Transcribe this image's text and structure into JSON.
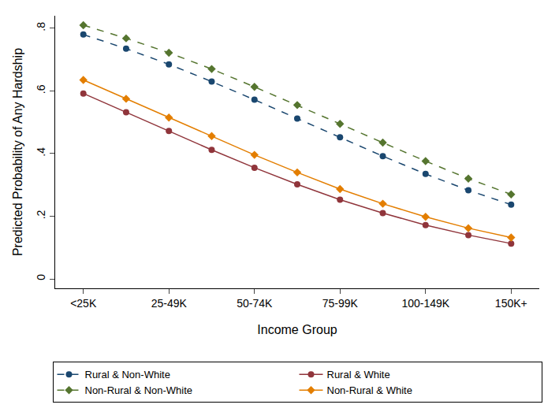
{
  "chart_data": {
    "type": "line",
    "x_label": "Income Group",
    "y_label": "Predicted Probability of Any Hardship",
    "categories": [
      "<25K",
      null,
      "25-49K",
      null,
      "50-74K",
      null,
      "75-99K",
      null,
      "100-149K",
      null,
      "150K+"
    ],
    "series": [
      {
        "name": "Rural & Non-White",
        "color": "#1a476f",
        "marker": "circle",
        "line_style": "dash",
        "values": [
          0.78,
          0.735,
          0.685,
          0.63,
          0.572,
          0.512,
          0.452,
          0.392,
          0.335,
          0.283,
          0.237
        ]
      },
      {
        "name": "Rural & White",
        "color": "#90353b",
        "marker": "circle",
        "line_style": "solid",
        "values": [
          0.592,
          0.532,
          0.472,
          0.412,
          0.355,
          0.302,
          0.253,
          0.21,
          0.172,
          0.14,
          0.113
        ]
      },
      {
        "name": "Non-Rural & Non-White",
        "color": "#55752f",
        "marker": "diamond",
        "line_style": "dash",
        "values": [
          0.81,
          0.768,
          0.722,
          0.67,
          0.613,
          0.555,
          0.495,
          0.435,
          0.376,
          0.32,
          0.27
        ]
      },
      {
        "name": "Non-Rural & White",
        "color": "#e37e00",
        "marker": "diamond",
        "line_style": "solid",
        "values": [
          0.635,
          0.575,
          0.515,
          0.456,
          0.396,
          0.34,
          0.287,
          0.24,
          0.198,
          0.162,
          0.132
        ]
      }
    ],
    "ylim": [
      -0.03,
      0.84
    ],
    "yticks": [
      0,
      {
        "value": 0.2,
        "label": ".2"
      },
      {
        "value": 0.4,
        "label": ".4"
      },
      {
        "value": 0.6,
        "label": ".6"
      },
      {
        "value": 0.8,
        "label": ".8"
      }
    ],
    "grid": false,
    "legend": "bottom"
  }
}
